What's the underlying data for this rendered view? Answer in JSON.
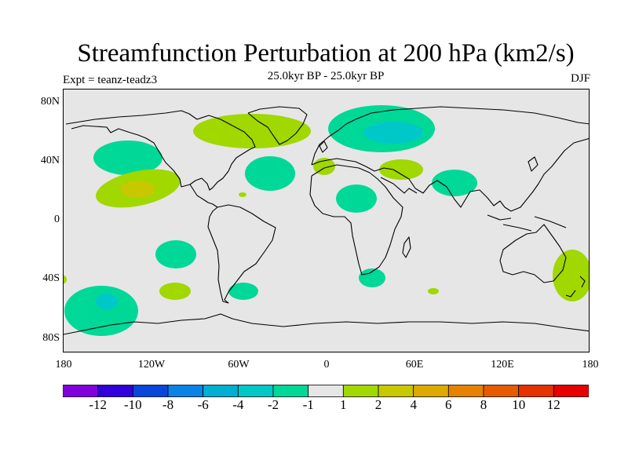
{
  "title": "Streamfunction Perturbation at 200 hPa (km2/s)",
  "subtitle": "25.0kyr BP - 25.0kyr BP",
  "expt_label": "Expt = teanz-teadz3",
  "season": "DJF",
  "map": {
    "background_color": "#e6e6e6",
    "lat_labels": [
      "80N",
      "40N",
      "0",
      "40S",
      "80S"
    ],
    "lon_labels": [
      "180",
      "120W",
      "60W",
      "0",
      "60E",
      "120E",
      "180"
    ],
    "anomalies": [
      {
        "region": "N Pacific",
        "sign": "negative",
        "level": -2,
        "color": "#00d898"
      },
      {
        "region": "Subtropical NE Pacific",
        "sign": "positive",
        "level": 2,
        "color": "#a0d800"
      },
      {
        "region": "Subtropical NE Pacific core",
        "sign": "positive",
        "level": 4,
        "color": "#c8c800"
      },
      {
        "region": "Greenland / N Atlantic",
        "sign": "positive",
        "level": 2,
        "color": "#a0d800"
      },
      {
        "region": "Central N Atlantic",
        "sign": "negative",
        "level": -2,
        "color": "#00d898"
      },
      {
        "region": "Scandinavia / Arctic",
        "sign": "negative",
        "level": -2,
        "color": "#00d898"
      },
      {
        "region": "Scandinavia core",
        "sign": "negative",
        "level": -4,
        "color": "#00c8c8"
      },
      {
        "region": "Mediterranean",
        "sign": "positive",
        "level": 2,
        "color": "#a0d800"
      },
      {
        "region": "Middle East",
        "sign": "positive",
        "level": 2,
        "color": "#a0d800"
      },
      {
        "region": "North Africa",
        "sign": "negative",
        "level": -2,
        "color": "#00d898"
      },
      {
        "region": "South Asia",
        "sign": "negative",
        "level": -2,
        "color": "#00d898"
      },
      {
        "region": "SE Pacific",
        "sign": "negative",
        "level": -2,
        "color": "#00d898"
      },
      {
        "region": "S Pacific",
        "sign": "positive",
        "level": 2,
        "color": "#a0d800"
      },
      {
        "region": "Far S Pacific",
        "sign": "negative",
        "level": -2,
        "color": "#00d898"
      },
      {
        "region": "Far S Pacific core",
        "sign": "negative",
        "level": -4,
        "color": "#00c8c8"
      },
      {
        "region": "S Atlantic",
        "sign": "negative",
        "level": -2,
        "color": "#00d898"
      },
      {
        "region": "S Africa",
        "sign": "negative",
        "level": -2,
        "color": "#00d898"
      },
      {
        "region": "S Indian Ocean",
        "sign": "positive",
        "level": 2,
        "color": "#a0d800"
      },
      {
        "region": "New Zealand",
        "sign": "positive",
        "level": 2,
        "color": "#a0d800"
      }
    ]
  },
  "colorbar": {
    "colors": [
      "#8200dc",
      "#3200dc",
      "#0a46dc",
      "#0a82e6",
      "#00afd2",
      "#00c8c8",
      "#00d898",
      "#e6e6e6",
      "#a0d800",
      "#c8c800",
      "#dcaa00",
      "#e68200",
      "#e65a00",
      "#e63200",
      "#e60000"
    ],
    "labels": [
      "-12",
      "-10",
      "-8",
      "-6",
      "-4",
      "-2",
      "-1",
      "1",
      "2",
      "4",
      "6",
      "8",
      "10",
      "12"
    ]
  }
}
